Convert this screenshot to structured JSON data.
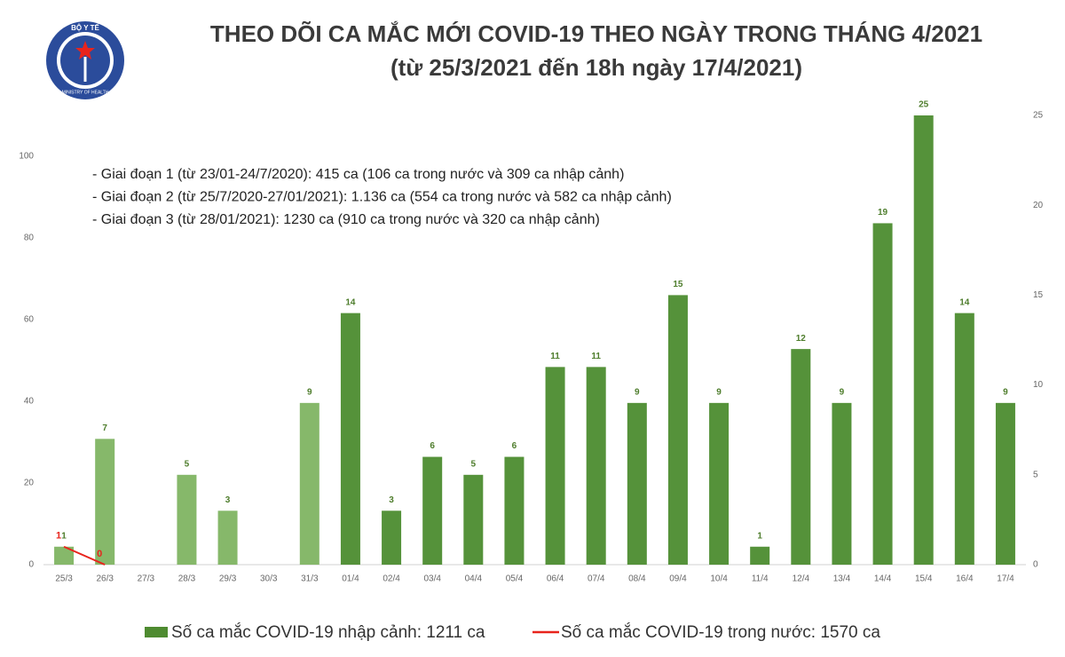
{
  "logo": {
    "top": "BỘ Y TẾ",
    "bottom": "MINISTRY OF HEALTH"
  },
  "chart_data": {
    "type": "bar",
    "title": "THEO DÕI CA MẮC MỚI COVID-19 THEO NGÀY TRONG THÁNG 4/2021",
    "subtitle": "(từ 25/3/2021 đến 18h ngày 17/4/2021)",
    "annotations": [
      "- Giai đoạn 1 (từ 23/01-24/7/2020): 415 ca (106 ca trong nước và 309 ca nhập cảnh)",
      "- Giai đoạn 2 (từ 25/7/2020-27/01/2021): 1.136 ca (554 ca trong nước và 582 ca nhập cảnh)",
      "- Giai đoạn 3 (từ 28/01/2021): 1230 ca (910 ca trong nước và 320 ca nhập cảnh)"
    ],
    "categories": [
      "25/3",
      "26/3",
      "27/3",
      "28/3",
      "29/3",
      "30/3",
      "31/3",
      "01/4",
      "02/4",
      "03/4",
      "04/4",
      "05/4",
      "06/4",
      "07/4",
      "08/4",
      "09/4",
      "10/4",
      "11/4",
      "12/4",
      "13/4",
      "14/4",
      "15/4",
      "16/4",
      "17/4"
    ],
    "series": [
      {
        "name": "Số ca mắc COVID-19 nhập cảnh: 1211 ca",
        "type": "bar",
        "axis": "y2",
        "color": "#4e8b30",
        "point_colors": [
          "#86b86a",
          "#86b86a",
          "#86b86a",
          "#86b86a",
          "#86b86a",
          "#86b86a",
          "#86b86a",
          "#55923a",
          "#55923a",
          "#55923a",
          "#55923a",
          "#55923a",
          "#55923a",
          "#55923a",
          "#55923a",
          "#55923a",
          "#55923a",
          "#55923a",
          "#55923a",
          "#55923a",
          "#55923a",
          "#55923a",
          "#55923a",
          "#55923a"
        ],
        "values": [
          1,
          7,
          null,
          5,
          3,
          null,
          9,
          14,
          3,
          6,
          5,
          6,
          11,
          11,
          9,
          15,
          9,
          1,
          12,
          9,
          19,
          25,
          14,
          9
        ]
      },
      {
        "name": "Số ca mắc COVID-19 trong nước: 1570 ca",
        "type": "line",
        "axis": "y2",
        "color": "#e8241c",
        "values": [
          1,
          0,
          null,
          null,
          null,
          null,
          null,
          null,
          null,
          null,
          null,
          null,
          null,
          null,
          null,
          null,
          null,
          null,
          null,
          null,
          null,
          null,
          null,
          null
        ]
      }
    ],
    "ylim": [
      0,
      110
    ],
    "yticks": [
      0,
      20,
      40,
      60,
      80,
      100
    ],
    "y2lim": [
      0,
      25
    ],
    "y2ticks": [
      0,
      5,
      10,
      15,
      20,
      25
    ],
    "grid": false
  }
}
